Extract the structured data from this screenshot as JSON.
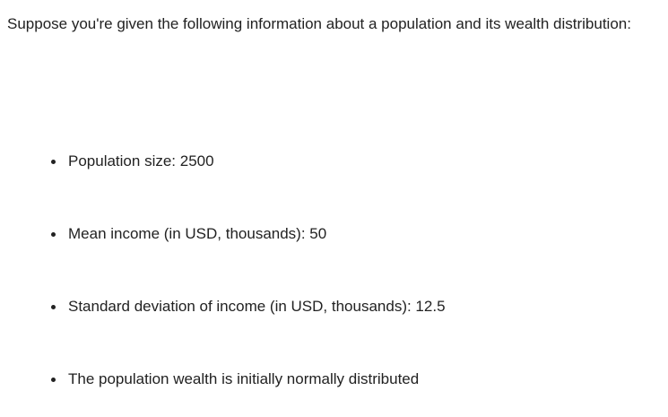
{
  "intro": "Suppose you're given the following information about a population and its wealth distribution:",
  "bullets": [
    "Population size: 2500",
    "Mean income (in USD, thousands): 50",
    "Standard deviation of income (in USD, thousands): 12.5",
    "The population wealth is initially normally distributed"
  ]
}
